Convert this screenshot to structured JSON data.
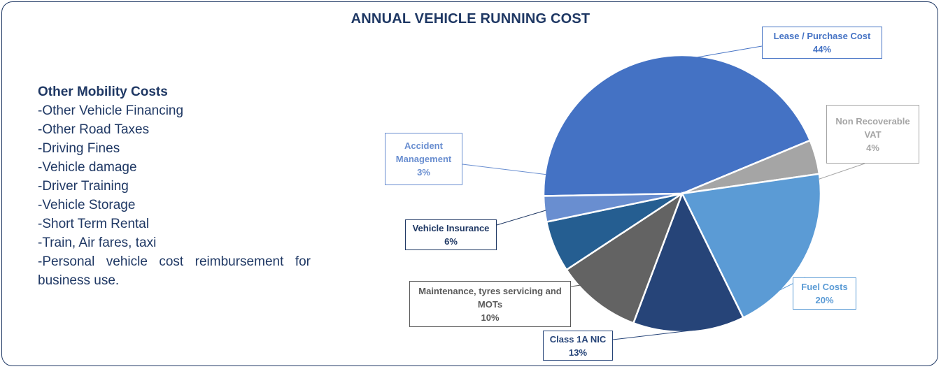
{
  "chart_data": {
    "type": "pie",
    "title": "ANNUAL VEHICLE RUNNING COST",
    "slices": [
      {
        "label": "Lease / Purchase Cost",
        "value": 44,
        "pct_label": "44%",
        "color": "#4472c4",
        "label_color": "#4472c4"
      },
      {
        "label": "Non Recoverable VAT",
        "value": 4,
        "pct_label": "4%",
        "color": "#a5a5a5",
        "label_color": "#a5a5a5"
      },
      {
        "label": "Fuel Costs",
        "value": 20,
        "pct_label": "20%",
        "color": "#5b9bd5",
        "label_color": "#5b9bd5"
      },
      {
        "label": "Class 1A NIC",
        "value": 13,
        "pct_label": "13%",
        "color": "#264478",
        "label_color": "#264478"
      },
      {
        "label": "Maintenance, tyres servicing and MOTs",
        "value": 10,
        "pct_label": "10%",
        "color": "#636363",
        "label_color": "#595959"
      },
      {
        "label": "Vehicle Insurance",
        "value": 6,
        "pct_label": "6%",
        "color": "#255e91",
        "label_color": "#1f3864"
      },
      {
        "label": "Accident Management",
        "value": 3,
        "pct_label": "3%",
        "color": "#698ed0",
        "label_color": "#698ed0"
      }
    ]
  },
  "side_panel": {
    "heading": "Other Mobility Costs",
    "items": [
      "-Other Vehicle Financing",
      "-Other Road Taxes",
      "-Driving Fines",
      "-Vehicle damage",
      "-Driver Training",
      "-Vehicle Storage",
      "-Short Term Rental",
      "-Train, Air fares, taxi",
      "-Personal vehicle cost reimbursement for business use."
    ]
  },
  "colors": {
    "frame": "#1f3864",
    "title": "#1f3864",
    "slice_border": "#ffffff"
  }
}
